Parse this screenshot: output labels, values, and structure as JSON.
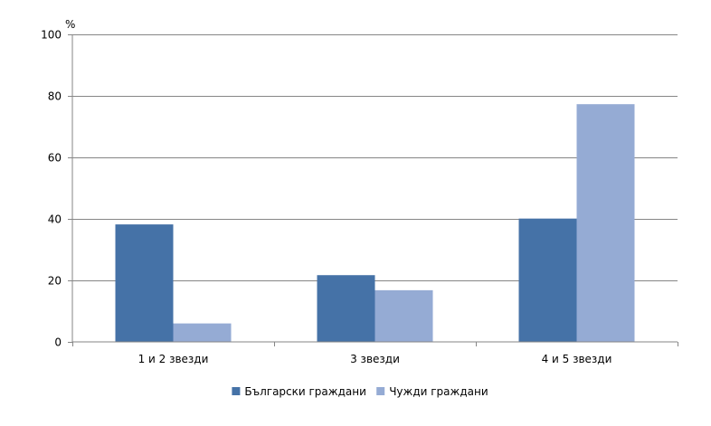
{
  "chart_data": {
    "type": "bar",
    "categories": [
      "1 и 2 звезди",
      "3 звезди",
      "4 и 5 звезди"
    ],
    "series": [
      {
        "name": "Български граждани",
        "values": [
          38.2,
          21.7,
          40.1
        ],
        "color": "#4572a7"
      },
      {
        "name": "Чужди граждани",
        "values": [
          6.0,
          16.8,
          77.3
        ],
        "color": "#95abd4"
      }
    ],
    "ylabel": "%",
    "ylim": [
      0,
      100
    ],
    "yticks": [
      0,
      20,
      40,
      60,
      80,
      100
    ],
    "grid": true,
    "legend_position": "bottom"
  }
}
